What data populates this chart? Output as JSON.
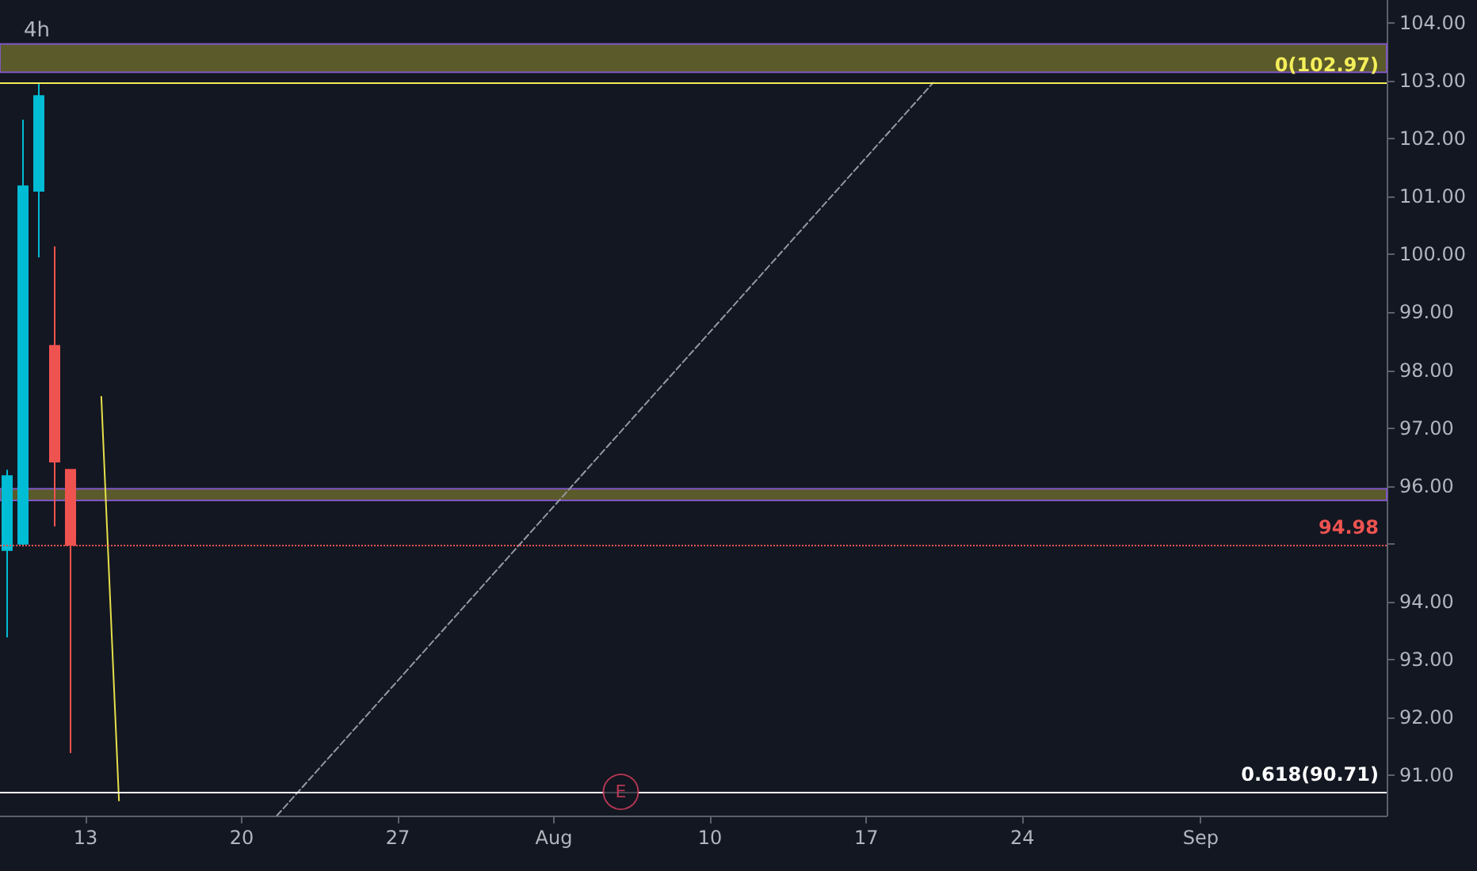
{
  "chart_data": {
    "type": "candlestick",
    "title": "4h",
    "x": [
      "--07-09T12:00",
      "--07-10T05:00",
      "--07-10T22:00",
      "--07-11T15:00",
      "--07-12T08:00"
    ],
    "ohlc": [
      [
        94.89,
        96.28,
        93.38,
        96.17
      ],
      [
        95.0,
        102.33,
        94.95,
        101.18
      ],
      [
        101.1,
        102.97,
        99.95,
        102.74
      ],
      [
        98.42,
        100.14,
        95.3,
        96.42
      ],
      [
        96.28,
        96.28,
        91.38,
        94.98
      ]
    ],
    "colors": [
      "#00bcd4",
      "#00bcd4",
      "#00bcd4",
      "#ef5350",
      "#ef5350"
    ],
    "series": [
      {
        "type": "line",
        "color": "#9598a1",
        "line_style": "dashed",
        "x": [
          "--07-21T14:00",
          "--08-20T00:00"
        ],
        "values": [
          90.3,
          102.97
        ]
      },
      {
        "type": "line",
        "color": "#e6e04a",
        "line_style": "solid",
        "x": [
          "--07-13T17:00",
          "--07-14T12:00"
        ],
        "values": [
          97.54,
          90.56
        ]
      }
    ],
    "xlim": [
      "--07-09T04:00",
      "--09-09T08:00"
    ],
    "xticks": [
      {
        "value": "--07-13",
        "label": "13"
      },
      {
        "value": "--07-20",
        "label": "20"
      },
      {
        "value": "--07-27",
        "label": "27"
      },
      {
        "value": "--08-03",
        "label": "Aug"
      },
      {
        "value": "--08-10",
        "label": "10"
      },
      {
        "value": "--08-17",
        "label": "17"
      },
      {
        "value": "--08-24",
        "label": "24"
      },
      {
        "value": "--09-01",
        "label": "Sep"
      }
    ],
    "ylim": [
      90.3,
      104.4
    ],
    "yticks": [
      {
        "value": 91,
        "label": "91.00"
      },
      {
        "value": 92,
        "label": "92.00"
      },
      {
        "value": 93,
        "label": "93.00"
      },
      {
        "value": 94,
        "label": "94.00"
      },
      {
        "value": 95,
        "label": null
      },
      {
        "value": 96,
        "label": "96.00"
      },
      {
        "value": 97,
        "label": "97.00"
      },
      {
        "value": 98,
        "label": "98.00"
      },
      {
        "value": 99,
        "label": "99.00"
      },
      {
        "value": 100,
        "label": "100.00"
      },
      {
        "value": 101,
        "label": "101.00"
      },
      {
        "value": 102,
        "label": "102.00"
      },
      {
        "value": 103,
        "label": "103.00"
      },
      {
        "value": 104,
        "label": "104.00"
      }
    ],
    "ref_lines": [
      {
        "axis": "y",
        "value": 102.97,
        "label": "0(102.97)",
        "color": "#f4ee5a",
        "line_style": "solid"
      },
      {
        "axis": "y",
        "value": 90.71,
        "label": "0.618(90.71)",
        "color": "#ffffff",
        "line_style": "solid"
      },
      {
        "axis": "y",
        "value": 94.98,
        "label": "94.98",
        "color": "#ef5350",
        "line_style": "dotted"
      }
    ],
    "bands": [
      {
        "axis": "y",
        "from": 103.15,
        "to": 103.64,
        "color": "#5b5a2a"
      },
      {
        "axis": "y",
        "from": 95.75,
        "to": 95.95,
        "color": "#5b5a2a"
      }
    ],
    "annotations": [
      {
        "text": "E",
        "x": "--08-06",
        "y": 90.71
      }
    ],
    "grid": false
  }
}
